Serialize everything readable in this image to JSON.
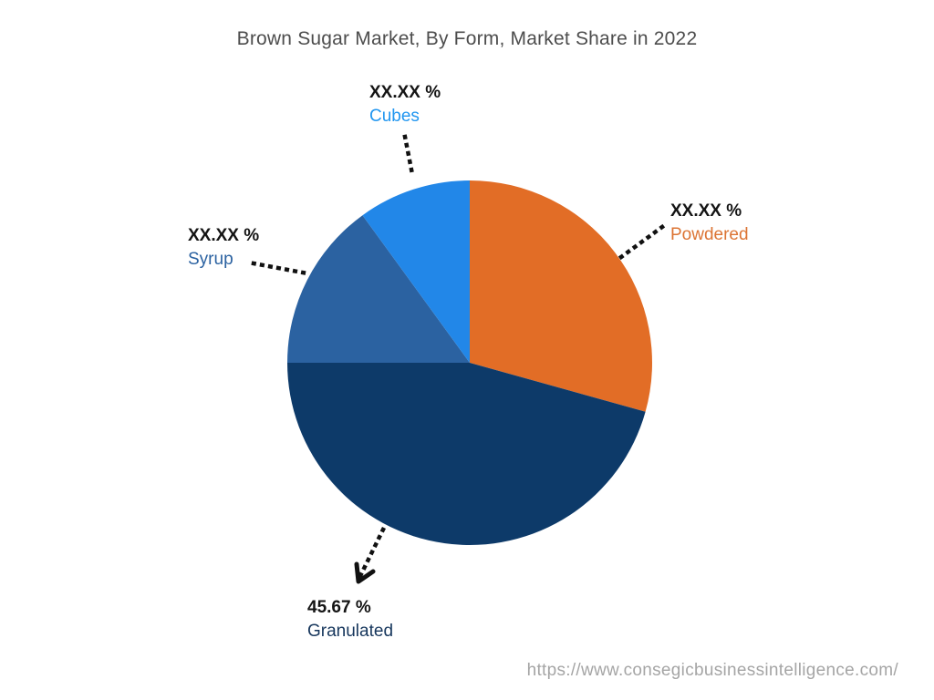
{
  "title": "Brown Sugar Market, By Form, Market Share in 2022",
  "watermark": "https://www.consegicbusinessintelligence.com/",
  "colors": {
    "title_text": "#4d4d4d",
    "value_text": "#141414",
    "leader_line": "#111111",
    "watermark_text": "#a5a5a5",
    "background": "#ffffff"
  },
  "chart_data": {
    "type": "pie",
    "title": "Brown Sugar Market, By Form, Market Share in 2022",
    "start_angle_deg": 0,
    "direction": "clockwise",
    "legend": "none",
    "labels_style": "outside-callouts-with-dotted-leaders",
    "slices": [
      {
        "label": "Powdered",
        "value_display": "XX.XX %",
        "share_pct": 29.33,
        "share_is_estimated": true,
        "color": "#E26D26",
        "label_color": "#DC7434"
      },
      {
        "label": "Granulated",
        "value_display": "45.67 %",
        "share_pct": 45.67,
        "share_is_estimated": false,
        "color": "#0D3A69",
        "label_color": "#16365C"
      },
      {
        "label": "Syrup",
        "value_display": "XX.XX %",
        "share_pct": 15.0,
        "share_is_estimated": true,
        "color": "#2B62A1",
        "label_color": "#2B62A1"
      },
      {
        "label": "Cubes",
        "value_display": "XX.XX %",
        "share_pct": 10.0,
        "share_is_estimated": true,
        "color": "#2287E8",
        "label_color": "#2196F0"
      }
    ]
  }
}
